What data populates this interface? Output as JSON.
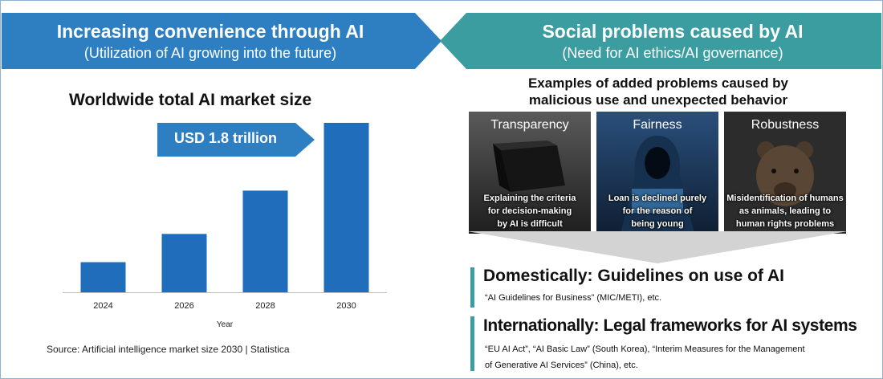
{
  "banners": {
    "left": {
      "title": "Increasing convenience through AI",
      "subtitle": "(Utilization of AI growing into the future)",
      "color": "#2e7fc1"
    },
    "right": {
      "title": "Social problems caused by AI",
      "subtitle": "(Need for AI ethics/AI governance)",
      "color": "#3b9d9f"
    }
  },
  "chart_data": {
    "type": "bar",
    "title": "Worldwide total AI market size",
    "categories": [
      "2024",
      "2026",
      "2028",
      "2030"
    ],
    "values": [
      0.32,
      0.62,
      1.08,
      1.8
    ],
    "xlabel": "Year",
    "ylabel": "",
    "ylim": [
      0,
      1.8
    ],
    "annotation": "USD 1.8 trillion",
    "bar_color": "#1f6dbb",
    "grid": false
  },
  "source": "Source: Artificial intelligence market size 2030 | Statistica",
  "examples": {
    "heading_line1": "Examples of added problems caused by",
    "heading_line2": "malicious use and unexpected behavior",
    "cards": [
      {
        "title": "Transparency",
        "desc": [
          "Explaining the criteria",
          "for decision-making",
          "by AI is difficult"
        ]
      },
      {
        "title": "Fairness",
        "desc": [
          "Loan is declined purely",
          "for the reason of",
          "being young"
        ]
      },
      {
        "title": "Robustness",
        "desc": [
          "Misidentification of humans",
          "as animals, leading to",
          "human rights problems"
        ]
      }
    ]
  },
  "domestic": {
    "title": "Domestically: Guidelines on use of AI",
    "detail": "“AI Guidelines for Business” (MIC/METI), etc."
  },
  "international": {
    "title": "Internationally: Legal frameworks for AI systems",
    "detail_line1": "“EU AI Act”, “AI Basic Law” (South Korea), “Interim Measures for the Management",
    "detail_line2": "of Generative AI Services” (China), etc."
  }
}
